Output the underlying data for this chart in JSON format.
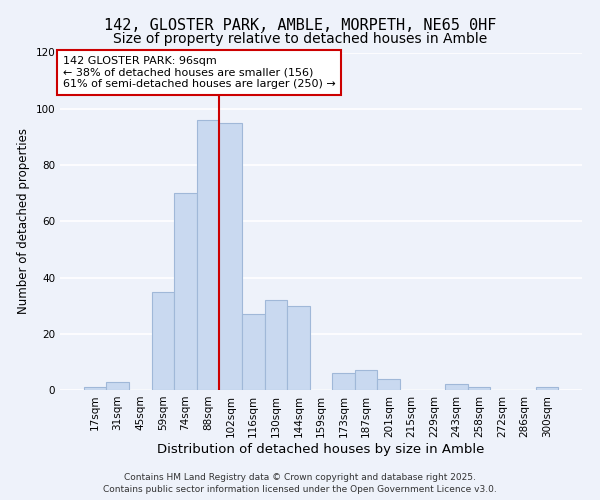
{
  "title": "142, GLOSTER PARK, AMBLE, MORPETH, NE65 0HF",
  "subtitle": "Size of property relative to detached houses in Amble",
  "xlabel": "Distribution of detached houses by size in Amble",
  "ylabel": "Number of detached properties",
  "bin_labels": [
    "17sqm",
    "31sqm",
    "45sqm",
    "59sqm",
    "74sqm",
    "88sqm",
    "102sqm",
    "116sqm",
    "130sqm",
    "144sqm",
    "159sqm",
    "173sqm",
    "187sqm",
    "201sqm",
    "215sqm",
    "229sqm",
    "243sqm",
    "258sqm",
    "272sqm",
    "286sqm",
    "300sqm"
  ],
  "bar_heights": [
    1,
    3,
    0,
    35,
    70,
    96,
    95,
    27,
    32,
    30,
    0,
    6,
    7,
    4,
    0,
    0,
    2,
    1,
    0,
    0,
    1
  ],
  "bar_color": "#c9d9f0",
  "bar_edgecolor": "#a0b8d8",
  "background_color": "#eef2fa",
  "grid_color": "#ffffff",
  "ylim": [
    0,
    120
  ],
  "yticks": [
    0,
    20,
    40,
    60,
    80,
    100,
    120
  ],
  "annotation_title": "142 GLOSTER PARK: 96sqm",
  "annotation_line1": "← 38% of detached houses are smaller (156)",
  "annotation_line2": "61% of semi-detached houses are larger (250) →",
  "vline_x_index": 5.5,
  "vline_color": "#cc0000",
  "annotation_box_edgecolor": "#cc0000",
  "footer_line1": "Contains HM Land Registry data © Crown copyright and database right 2025.",
  "footer_line2": "Contains public sector information licensed under the Open Government Licence v3.0.",
  "title_fontsize": 11,
  "subtitle_fontsize": 10,
  "xlabel_fontsize": 9.5,
  "ylabel_fontsize": 8.5,
  "tick_fontsize": 7.5,
  "annotation_fontsize": 8,
  "footer_fontsize": 6.5
}
